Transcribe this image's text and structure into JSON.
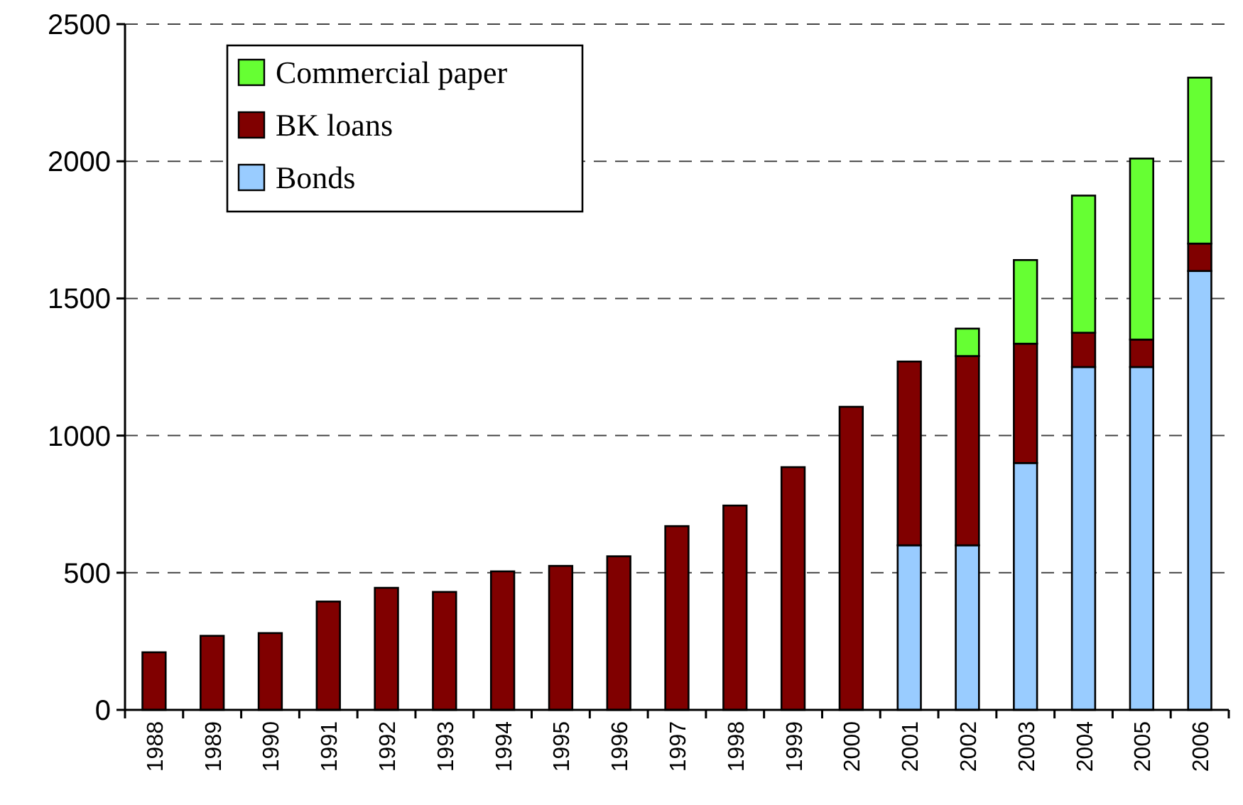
{
  "chart_data": {
    "type": "bar",
    "stacked": true,
    "categories": [
      "1988",
      "1989",
      "1990",
      "1991",
      "1992",
      "1993",
      "1994",
      "1995",
      "1996",
      "1997",
      "1998",
      "1999",
      "2000",
      "2001",
      "2002",
      "2003",
      "2004",
      "2005",
      "2006"
    ],
    "series": [
      {
        "name": "Bonds",
        "color": "#99ccff",
        "values": [
          null,
          null,
          null,
          null,
          null,
          null,
          null,
          null,
          null,
          null,
          null,
          null,
          null,
          600,
          600,
          900,
          1250,
          1250,
          1600
        ]
      },
      {
        "name": "BK loans",
        "color": "#800000",
        "values": [
          210,
          270,
          280,
          395,
          445,
          430,
          505,
          525,
          560,
          670,
          745,
          885,
          1105,
          670,
          690,
          435,
          125,
          100,
          100
        ]
      },
      {
        "name": "Commercial paper",
        "color": "#66ff33",
        "values": [
          null,
          null,
          null,
          null,
          null,
          null,
          null,
          null,
          null,
          null,
          null,
          null,
          null,
          null,
          100,
          305,
          500,
          660,
          605
        ]
      }
    ],
    "ylim": [
      0,
      2500
    ],
    "yticks": [
      0,
      500,
      1000,
      1500,
      2000,
      2500
    ],
    "grid": "y",
    "legend": "top left"
  }
}
